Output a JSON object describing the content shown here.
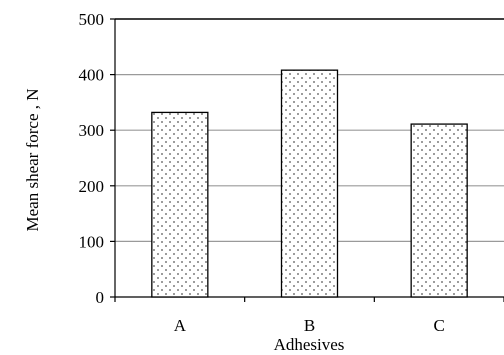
{
  "chart_data": {
    "type": "bar",
    "title": "",
    "xlabel": "Adhesives",
    "ylabel": "Mean shear force , N",
    "categories": [
      "A",
      "B",
      "C"
    ],
    "values": [
      332,
      408,
      311
    ],
    "ylim": [
      0,
      500
    ],
    "yticks": [
      0,
      100,
      200,
      300,
      400,
      500
    ],
    "grid": true,
    "legend": "none",
    "bar_fill": "dotted",
    "colors": {
      "bar_outline": "#000000",
      "dots": "#555555",
      "grid": "#9a9a9a",
      "axis": "#000000"
    }
  }
}
